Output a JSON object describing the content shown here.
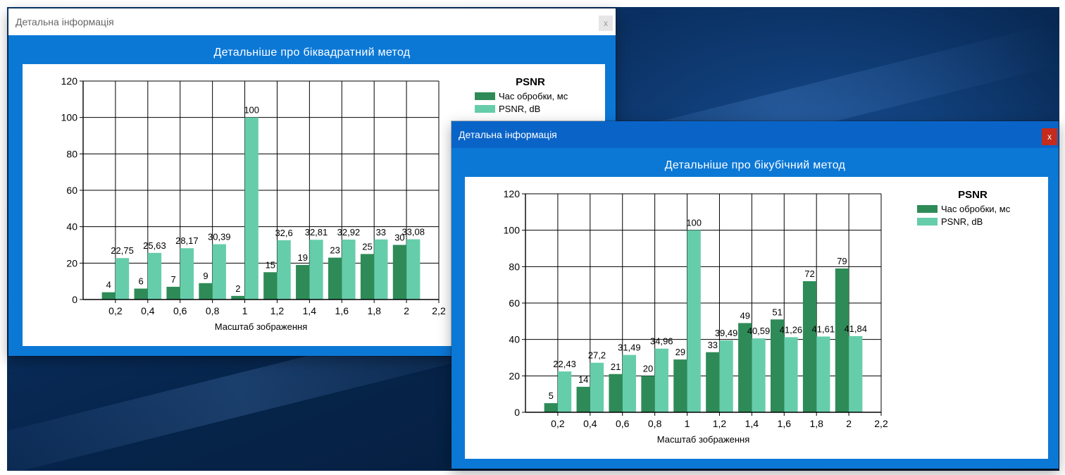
{
  "colors": {
    "time_series": "#2e8b57",
    "psnr_series": "#66cdaa",
    "window_frame": "#0c78d6",
    "active_title": "#0a64c8",
    "close_active": "#c42b1c"
  },
  "windows": [
    {
      "id": "biquadratic",
      "title": "Детальна інформація",
      "close_label": "x",
      "active": false,
      "heading": "Детальніше про біквадратний метод",
      "chart_data": {
        "type": "bar",
        "legend_title": "PSNR",
        "legend_position": "top-right",
        "xlabel": "Масштаб зображення",
        "ylabel": "",
        "x_ticks": [
          "0,2",
          "0,4",
          "0,6",
          "0,8",
          "1",
          "1,2",
          "1,4",
          "1,6",
          "1,8",
          "2",
          "2,2"
        ],
        "ylim": [
          0,
          120
        ],
        "y_ticks": [
          "0",
          "20",
          "40",
          "60",
          "80",
          "100",
          "120"
        ],
        "grid": true,
        "series": [
          {
            "name": "Час обробки, мс",
            "values": [
              4,
              6,
              7,
              9,
              2,
              15,
              19,
              23,
              25,
              30
            ],
            "labels": [
              "4",
              "6",
              "7",
              "9",
              "2",
              "15",
              "19",
              "23",
              "25",
              "30"
            ]
          },
          {
            "name": "PSNR, dB",
            "values": [
              22.75,
              25.63,
              28.17,
              30.39,
              100,
              32.6,
              32.81,
              32.92,
              33,
              33.08
            ],
            "labels": [
              "22,75",
              "25,63",
              "28,17",
              "30,39",
              "100",
              "32,6",
              "32,81",
              "32,92",
              "33",
              "33,08"
            ]
          }
        ]
      }
    },
    {
      "id": "bicubic",
      "title": "Детальна інформація",
      "close_label": "x",
      "active": true,
      "heading": "Детальніше про бікубічний метод",
      "chart_data": {
        "type": "bar",
        "legend_title": "PSNR",
        "legend_position": "top-right",
        "xlabel": "Масштаб зображення",
        "ylabel": "",
        "x_ticks": [
          "0,2",
          "0,4",
          "0,6",
          "0,8",
          "1",
          "1,2",
          "1,4",
          "1,6",
          "1,8",
          "2",
          "2,2"
        ],
        "ylim": [
          0,
          120
        ],
        "y_ticks": [
          "0",
          "20",
          "40",
          "60",
          "80",
          "100",
          "120"
        ],
        "grid": true,
        "series": [
          {
            "name": "Час обробки, мс",
            "values": [
              5,
              14,
              21,
              20,
              29,
              33,
              49,
              51,
              72,
              79
            ],
            "labels": [
              "5",
              "14",
              "21",
              "20",
              "29",
              "33",
              "49",
              "51",
              "72",
              "79"
            ]
          },
          {
            "name": "PSNR, dB",
            "values": [
              22.43,
              27.2,
              31.49,
              34.96,
              100,
              39.49,
              40.59,
              41.26,
              41.61,
              41.84
            ],
            "labels": [
              "22,43",
              "27,2",
              "31,49",
              "34,96",
              "100",
              "39,49",
              "40,59",
              "41,26",
              "41,61",
              "41,84"
            ]
          }
        ]
      }
    }
  ]
}
